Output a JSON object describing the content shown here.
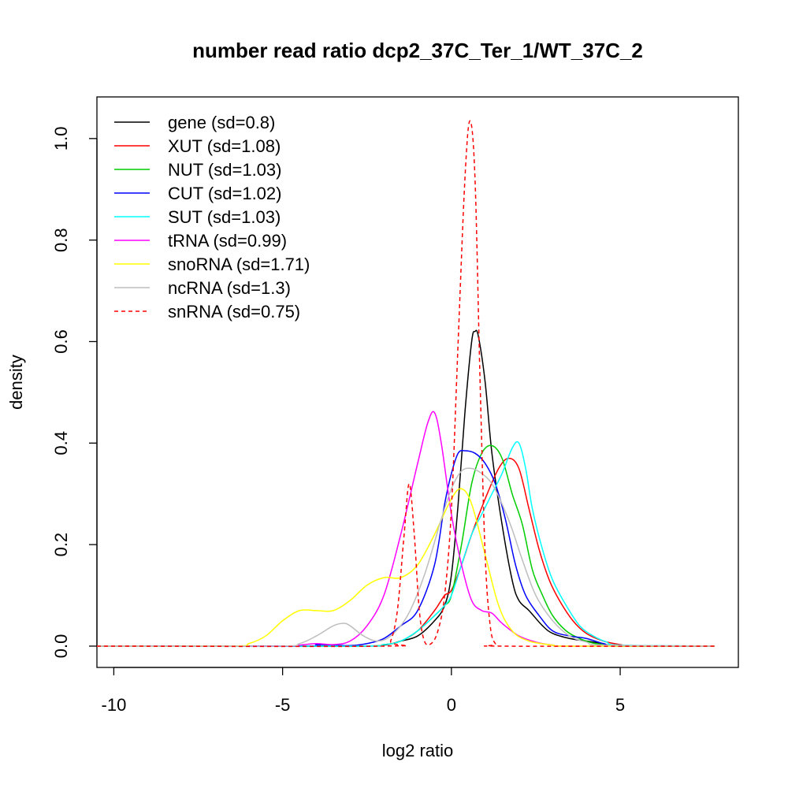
{
  "chart_data": {
    "type": "line",
    "title": "number read ratio dcp2_37C_Ter_1/WT_37C_2",
    "xlabel": "log2 ratio",
    "ylabel": "density",
    "xlim": [
      -10.5,
      8.5
    ],
    "ylim": [
      -0.042,
      1.082
    ],
    "x_ticks": [
      -10,
      -5,
      0,
      5
    ],
    "x_tick_labels": [
      "-10",
      "-5",
      "0",
      "5"
    ],
    "y_ticks": [
      0.0,
      0.2,
      0.4,
      0.6,
      0.8,
      1.0
    ],
    "y_tick_labels": [
      "0.0",
      "0.2",
      "0.4",
      "0.6",
      "0.8",
      "1.0"
    ],
    "grid": false,
    "legend_position": "top-left",
    "series": [
      {
        "name": "gene (sd=0.8)",
        "color": "#000000",
        "dash": "solid",
        "x": [
          -10.5,
          -3,
          -2,
          -1.5,
          -1,
          -0.5,
          -0.2,
          0,
          0.2,
          0.4,
          0.6,
          0.7,
          0.8,
          1.0,
          1.2,
          1.5,
          1.8,
          2.0,
          2.3,
          2.7,
          3.0,
          3.5,
          4.0,
          4.5,
          5.0,
          7.8
        ],
        "y": [
          0,
          0,
          0.002,
          0.01,
          0.02,
          0.05,
          0.08,
          0.14,
          0.28,
          0.46,
          0.6,
          0.62,
          0.61,
          0.52,
          0.38,
          0.24,
          0.13,
          0.09,
          0.07,
          0.04,
          0.025,
          0.015,
          0.01,
          0.005,
          0,
          0
        ]
      },
      {
        "name": "XUT (sd=1.08)",
        "color": "#ff0000",
        "dash": "solid",
        "x": [
          -10.5,
          -3,
          -2,
          -1.5,
          -1,
          -0.5,
          -0.2,
          0,
          0.3,
          0.6,
          1.0,
          1.4,
          1.7,
          2.0,
          2.3,
          2.6,
          2.9,
          3.2,
          3.6,
          4.0,
          4.5,
          5.0,
          5.5,
          7.8
        ],
        "y": [
          0,
          0,
          0.003,
          0.01,
          0.03,
          0.07,
          0.1,
          0.11,
          0.16,
          0.22,
          0.29,
          0.35,
          0.37,
          0.35,
          0.27,
          0.19,
          0.13,
          0.09,
          0.05,
          0.025,
          0.01,
          0.003,
          0,
          0
        ]
      },
      {
        "name": "NUT (sd=1.03)",
        "color": "#00cd00",
        "dash": "solid",
        "x": [
          -10.5,
          -3,
          -2,
          -1.5,
          -1,
          -0.5,
          -0.2,
          0,
          0.3,
          0.6,
          0.9,
          1.2,
          1.5,
          1.8,
          2.1,
          2.4,
          2.7,
          3.0,
          3.4,
          3.8,
          4.2,
          4.7,
          5.2,
          7.8
        ],
        "y": [
          0,
          0,
          0.003,
          0.01,
          0.03,
          0.06,
          0.08,
          0.1,
          0.2,
          0.32,
          0.38,
          0.395,
          0.37,
          0.3,
          0.24,
          0.15,
          0.1,
          0.06,
          0.03,
          0.015,
          0.006,
          0.002,
          0,
          0
        ]
      },
      {
        "name": "CUT (sd=1.02)",
        "color": "#0000ff",
        "dash": "solid",
        "x": [
          -10.5,
          -4.5,
          -4,
          -3.5,
          -3,
          -2.5,
          -2,
          -1.5,
          -1,
          -0.5,
          -0.2,
          0,
          0.2,
          0.4,
          0.7,
          1.0,
          1.3,
          1.6,
          1.9,
          2.2,
          2.6,
          3.0,
          3.5,
          4.0,
          4.5,
          5.0,
          7.8
        ],
        "y": [
          0,
          0,
          0.003,
          0.002,
          0.001,
          0.005,
          0.015,
          0.04,
          0.07,
          0.16,
          0.28,
          0.34,
          0.38,
          0.385,
          0.38,
          0.36,
          0.32,
          0.25,
          0.16,
          0.1,
          0.06,
          0.03,
          0.02,
          0.015,
          0.005,
          0,
          0
        ]
      },
      {
        "name": "SUT (sd=1.03)",
        "color": "#00ffff",
        "dash": "solid",
        "x": [
          -10.5,
          -3,
          -2,
          -1.5,
          -1,
          -0.5,
          -0.2,
          0,
          0.3,
          0.6,
          0.9,
          1.2,
          1.5,
          1.8,
          2.0,
          2.2,
          2.4,
          2.7,
          3.0,
          3.4,
          3.8,
          4.2,
          4.6,
          5.0,
          7.8
        ],
        "y": [
          0,
          0,
          0.003,
          0.01,
          0.03,
          0.06,
          0.08,
          0.1,
          0.16,
          0.22,
          0.26,
          0.3,
          0.34,
          0.39,
          0.4,
          0.35,
          0.27,
          0.19,
          0.13,
          0.08,
          0.04,
          0.02,
          0.008,
          0.002,
          0
        ]
      },
      {
        "name": "tRNA (sd=0.99)",
        "color": "#ff00ff",
        "dash": "solid",
        "x": [
          -10.5,
          -5.2,
          -4.5,
          -4,
          -3.5,
          -3,
          -2.5,
          -2,
          -1.5,
          -1,
          -0.7,
          -0.5,
          -0.3,
          0,
          0.3,
          0.6,
          0.9,
          1.2,
          1.5,
          2.0,
          2.5,
          3.0,
          3.5,
          7.8
        ],
        "y": [
          0,
          0,
          0.002,
          0.005,
          0.003,
          0.01,
          0.04,
          0.1,
          0.22,
          0.36,
          0.44,
          0.46,
          0.4,
          0.26,
          0.16,
          0.09,
          0.07,
          0.065,
          0.045,
          0.02,
          0.008,
          0.002,
          0,
          0
        ]
      },
      {
        "name": "snoRNA (sd=1.71)",
        "color": "#ffff00",
        "dash": "solid",
        "x": [
          -10.5,
          -6.5,
          -6,
          -5.5,
          -5,
          -4.5,
          -4,
          -3.5,
          -3,
          -2.5,
          -2,
          -1.5,
          -1,
          -0.5,
          0,
          0.3,
          0.6,
          1.0,
          1.4,
          1.8,
          2.3,
          3.0,
          3.5,
          7.8
        ],
        "y": [
          0,
          0,
          0.005,
          0.02,
          0.05,
          0.07,
          0.07,
          0.07,
          0.09,
          0.12,
          0.135,
          0.135,
          0.16,
          0.22,
          0.29,
          0.31,
          0.28,
          0.18,
          0.08,
          0.03,
          0.01,
          0.002,
          0,
          0
        ]
      },
      {
        "name": "ncRNA (sd=1.3)",
        "color": "#bebebe",
        "dash": "solid",
        "x": [
          -10.5,
          -5.2,
          -4.5,
          -4,
          -3.5,
          -3.2,
          -3,
          -2.6,
          -2.2,
          -1.8,
          -1.3,
          -0.8,
          -0.3,
          0,
          0.3,
          0.6,
          0.9,
          1.2,
          1.5,
          1.8,
          2.1,
          2.5,
          3.0,
          3.5,
          4.0,
          4.5,
          7.8
        ],
        "y": [
          0,
          0,
          0.005,
          0.02,
          0.04,
          0.045,
          0.04,
          0.02,
          0.01,
          0.02,
          0.06,
          0.14,
          0.25,
          0.31,
          0.345,
          0.35,
          0.34,
          0.32,
          0.28,
          0.23,
          0.17,
          0.1,
          0.05,
          0.02,
          0.008,
          0.002,
          0
        ]
      },
      {
        "name": "snRNA (sd=0.75)",
        "color": "#ff0000",
        "dash": "dashed",
        "x": [
          -10.5,
          -2.0,
          -1.8,
          -1.6,
          -1.4,
          -1.25,
          -1.1,
          -0.95,
          -0.8,
          -0.6,
          -0.4,
          -0.2,
          0,
          0.2,
          0.4,
          0.55,
          0.7,
          0.85,
          1.0,
          1.15,
          1.3,
          1.5,
          7.8
        ],
        "y": [
          0,
          0,
          0.01,
          0.07,
          0.22,
          0.32,
          0.22,
          0.07,
          0.01,
          0.005,
          0.03,
          0.1,
          0.27,
          0.6,
          0.92,
          1.035,
          0.92,
          0.52,
          0.18,
          0.04,
          0.005,
          0,
          0
        ]
      }
    ]
  }
}
